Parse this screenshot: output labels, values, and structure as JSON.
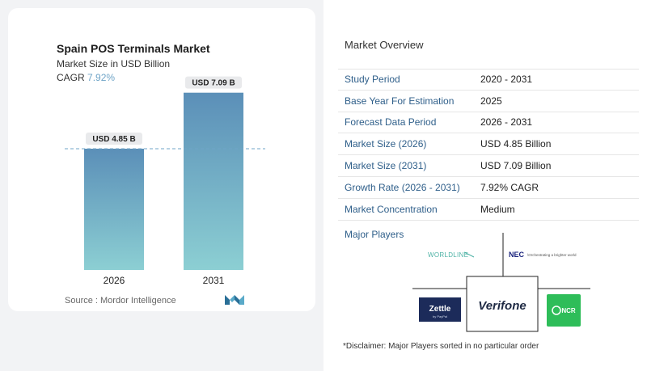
{
  "chart_data": {
    "type": "bar",
    "title": "Spain POS Terminals Market",
    "subtitle": "Market Size in USD Billion",
    "cagr_label": "CAGR",
    "cagr_value": "7.92%",
    "categories": [
      "2026",
      "2031"
    ],
    "values": [
      4.85,
      7.09
    ],
    "data_labels": [
      "USD 4.85 B",
      "USD 7.09 B"
    ],
    "ylim": [
      0,
      7.5
    ],
    "reference_line": 4.85,
    "bar_color_top": "#5b8fb8",
    "bar_color_bottom": "#8ccfd3"
  },
  "source": "Source :  Mordor Intelligence",
  "overview": {
    "title": "Market Overview",
    "rows": [
      {
        "label": "Study Period",
        "value": "2020 - 2031"
      },
      {
        "label": "Base Year For Estimation",
        "value": "2025"
      },
      {
        "label": "Forecast Data Period",
        "value": "2026 - 2031"
      },
      {
        "label": "Market Size (2026)",
        "value": "USD 4.85 Billion"
      },
      {
        "label": "Market Size (2031)",
        "value": "USD 7.09 Billion"
      },
      {
        "label": "Growth Rate (2026 - 2031)",
        "value": "7.92% CAGR"
      },
      {
        "label": "Market Concentration",
        "value": "Medium"
      }
    ]
  },
  "players": {
    "title": "Major Players",
    "logos": {
      "worldline": "WORLDLINE",
      "nec": "NEC",
      "nec_tag": "\\Orchestrating a brighter world",
      "zettle": "Zettle",
      "zettle_sub": "by PayPal",
      "verifone": "Verifone",
      "ncr": "NCR"
    }
  },
  "disclaimer": "*Disclaimer: Major Players sorted in no particular order"
}
